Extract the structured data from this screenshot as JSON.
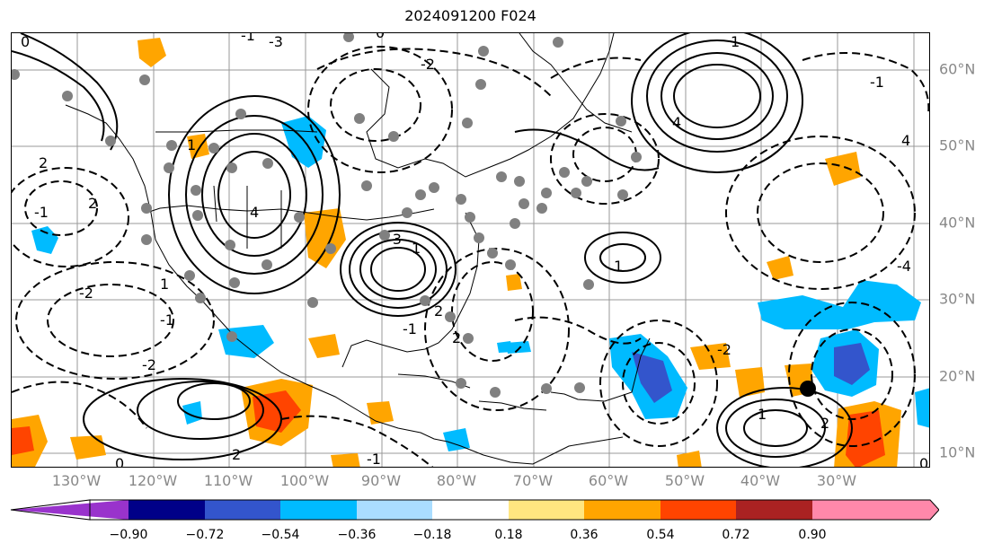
{
  "title": "2024091200 F024",
  "longitude_labels": [
    "130°W",
    "120°W",
    "110°W",
    "100°W",
    "90°W",
    "80°W",
    "70°W",
    "60°W",
    "50°W",
    "40°W",
    "30°W"
  ],
  "latitude_labels": [
    "60°N",
    "50°N",
    "40°N",
    "30°N",
    "20°N",
    "10°N"
  ],
  "colorbar": {
    "tick_labels": [
      "−0.90",
      "−0.72",
      "−0.54",
      "−0.36",
      "−0.18",
      "0.18",
      "0.36",
      "0.54",
      "0.72",
      "0.90"
    ],
    "colors": [
      "#9933cc",
      "#000088",
      "#3355cc",
      "#00bbff",
      "#aaddff",
      "#ffffff",
      "#ffe680",
      "#ffa500",
      "#ff4400",
      "#aa2222",
      "#ff88aa"
    ]
  },
  "colors": {
    "contour": "#000000",
    "coast": "#000000",
    "grid": "#888888",
    "station_dot": "#808080",
    "storm_marker": "#000000",
    "shade_cyan": "#00bbff",
    "shade_blue": "#3355cc",
    "shade_orange": "#ffa500",
    "shade_red": "#ff4400"
  },
  "contour_labels": [
    "0",
    "-1",
    "2",
    "-3",
    "4",
    "1",
    "-2",
    "0",
    "2",
    "-1",
    "-2",
    "-1",
    "1",
    "-2",
    "2",
    "0",
    "-1",
    "1",
    "-3",
    "2",
    "-1",
    "2",
    "1",
    "4",
    "1",
    "4",
    "-1",
    "-2",
    "0",
    "1",
    "2",
    "-4"
  ]
}
